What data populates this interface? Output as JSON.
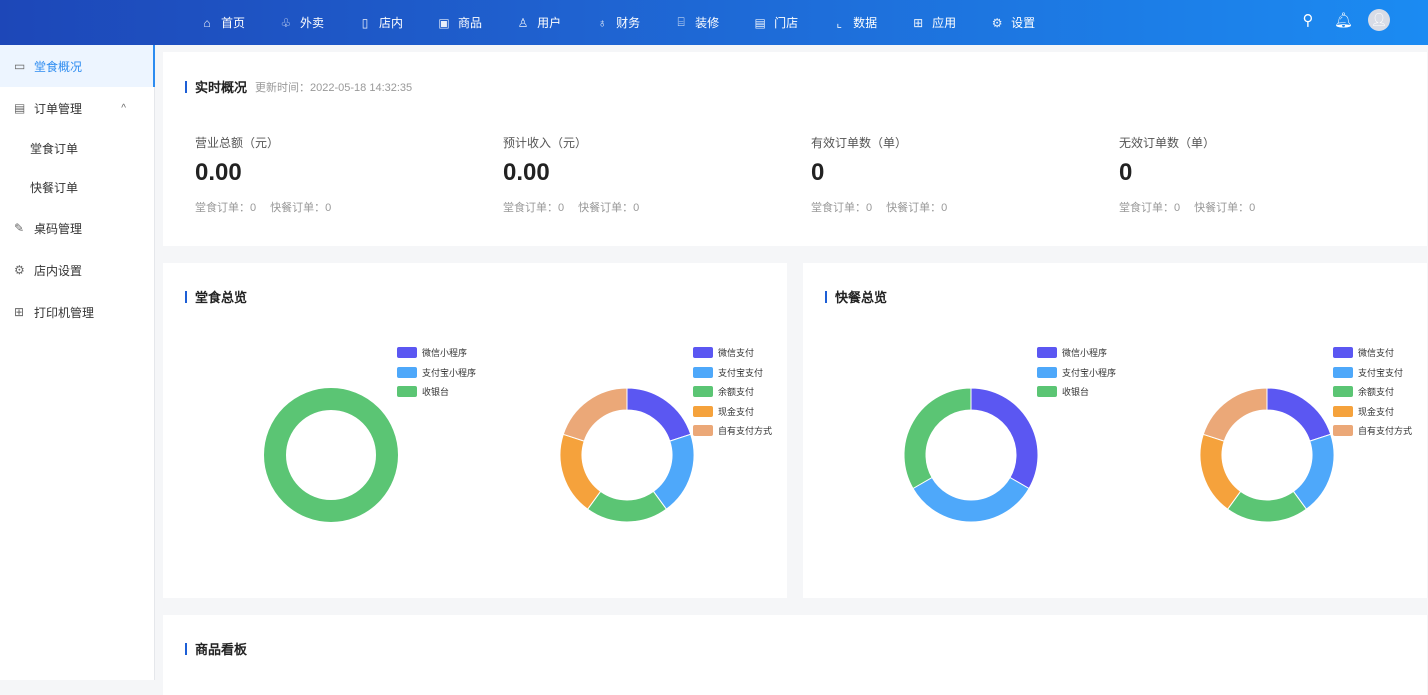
{
  "header": {
    "nav": [
      {
        "label": "首页",
        "icon": "home-icon",
        "g": "⌂"
      },
      {
        "label": "外卖",
        "icon": "takeaway-icon",
        "g": "♧"
      },
      {
        "label": "店内",
        "icon": "store-inside-icon",
        "g": "▯"
      },
      {
        "label": "商品",
        "icon": "product-icon",
        "g": "▣"
      },
      {
        "label": "用户",
        "icon": "user-icon",
        "g": "♙"
      },
      {
        "label": "财务",
        "icon": "money-bag-icon",
        "g": "♁"
      },
      {
        "label": "装修",
        "icon": "shop-decor-icon",
        "g": "⌸"
      },
      {
        "label": "门店",
        "icon": "shop-icon",
        "g": "▤"
      },
      {
        "label": "数据",
        "icon": "chart-icon",
        "g": "⌞"
      },
      {
        "label": "应用",
        "icon": "apps-icon",
        "g": "⊞"
      },
      {
        "label": "设置",
        "icon": "gear-icon",
        "g": "⚙"
      }
    ]
  },
  "sidebar": {
    "items": [
      {
        "label": "堂食概况",
        "icon": "monitor-chart-icon",
        "g": "▭",
        "active": true
      },
      {
        "label": "订单管理",
        "icon": "document-icon",
        "g": "▤",
        "chevron": "^"
      },
      {
        "label": "堂食订单",
        "sub": true
      },
      {
        "label": "快餐订单",
        "sub": true
      },
      {
        "label": "桌码管理",
        "icon": "edit-icon",
        "g": "✎"
      },
      {
        "label": "店内设置",
        "icon": "gear-icon",
        "g": "⚙"
      },
      {
        "label": "打印机管理",
        "icon": "grid-icon",
        "g": "⊞"
      }
    ]
  },
  "realtime": {
    "title": "实时概况",
    "update_label": "更新时间：",
    "update_time": "2022-05-18 14:32:35",
    "stats": [
      {
        "label": "营业总额（元）",
        "value": "0.00",
        "dine": "堂食订单：0",
        "fast": "快餐订单：0"
      },
      {
        "label": "预计收入（元）",
        "value": "0.00",
        "dine": "堂食订单：0",
        "fast": "快餐订单：0"
      },
      {
        "label": "有效订单数（单）",
        "value": "0",
        "dine": "堂食订单：0",
        "fast": "快餐订单：0"
      },
      {
        "label": "无效订单数（单）",
        "value": "0",
        "dine": "堂食订单：0",
        "fast": "快餐订单：0"
      }
    ]
  },
  "dine_overview": {
    "title": "堂食总览"
  },
  "fast_overview": {
    "title": "快餐总览"
  },
  "goods_board": {
    "title": "商品看板"
  },
  "chart_data": [
    {
      "type": "pie",
      "donut": true,
      "panel": "堂食总览",
      "categories": [
        "微信小程序",
        "支付宝小程序",
        "收银台"
      ],
      "values": [
        0,
        0,
        1
      ],
      "colors": [
        "#5b57f2",
        "#4ea8fa",
        "#5bc574"
      ]
    },
    {
      "type": "pie",
      "donut": true,
      "panel": "堂食总览",
      "categories": [
        "微信支付",
        "支付宝支付",
        "余额支付",
        "现金支付",
        "自有支付方式"
      ],
      "values": [
        1,
        1,
        1,
        1,
        1
      ],
      "colors": [
        "#5b57f2",
        "#4ea8fa",
        "#5bc574",
        "#f5a23c",
        "#eba878"
      ]
    },
    {
      "type": "pie",
      "donut": true,
      "panel": "快餐总览",
      "categories": [
        "微信小程序",
        "支付宝小程序",
        "收银台"
      ],
      "values": [
        1,
        1,
        1
      ],
      "colors": [
        "#5b57f2",
        "#4ea8fa",
        "#5bc574"
      ]
    },
    {
      "type": "pie",
      "donut": true,
      "panel": "快餐总览",
      "categories": [
        "微信支付",
        "支付宝支付",
        "余额支付",
        "现金支付",
        "自有支付方式"
      ],
      "values": [
        1,
        1,
        1,
        1,
        1
      ],
      "colors": [
        "#5b57f2",
        "#4ea8fa",
        "#5bc574",
        "#f5a23c",
        "#eba878"
      ]
    }
  ]
}
